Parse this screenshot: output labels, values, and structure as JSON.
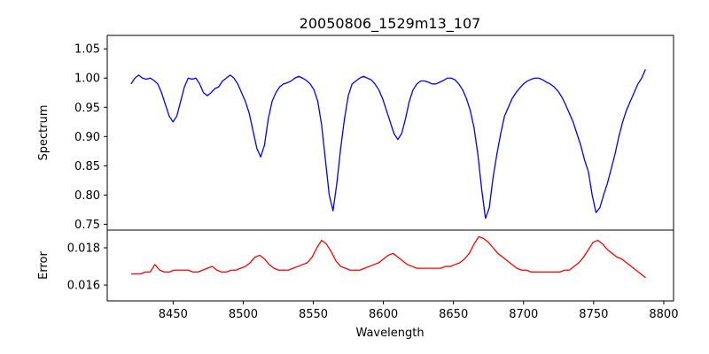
{
  "chart_data": {
    "type": "line",
    "title": "20050806_1529m13_107",
    "xlabel": "Wavelength",
    "x_ticks": [
      "8450",
      "8500",
      "8550",
      "8600",
      "8650",
      "8700",
      "8750",
      "8800"
    ],
    "xlim": [
      8403,
      8807
    ],
    "grid": false,
    "panels": [
      {
        "name": "spectrum-panel",
        "ylabel": "Spectrum",
        "ylim": [
          0.74,
          1.073
        ],
        "y_ticks": [
          "0.75",
          "0.80",
          "0.85",
          "0.90",
          "0.95",
          "1.00",
          "1.05"
        ],
        "series": [
          {
            "color": "#0000ff",
            "x_range": [
              8420,
              8787
            ],
            "y": [
              0.99,
              1.0,
              1.005,
              1.0,
              0.998,
              1.0,
              0.996,
              0.99,
              0.975,
              0.955,
              0.935,
              0.925,
              0.935,
              0.96,
              0.985,
              1.0,
              0.998,
              1.0,
              0.99,
              0.975,
              0.97,
              0.975,
              0.982,
              0.985,
              0.995,
              1.0,
              1.005,
              1.0,
              0.99,
              0.975,
              0.96,
              0.94,
              0.91,
              0.88,
              0.865,
              0.885,
              0.93,
              0.96,
              0.975,
              0.985,
              0.99,
              0.992,
              0.995,
              1.0,
              1.003,
              1.0,
              0.996,
              0.99,
              0.98,
              0.96,
              0.92,
              0.86,
              0.8,
              0.773,
              0.82,
              0.88,
              0.93,
              0.97,
              0.99,
              0.995,
              1.0,
              1.003,
              1.0,
              0.997,
              0.99,
              0.98,
              0.965,
              0.945,
              0.925,
              0.905,
              0.895,
              0.905,
              0.93,
              0.96,
              0.98,
              0.99,
              0.995,
              0.995,
              0.993,
              0.99,
              0.99,
              0.993,
              0.996,
              1.0,
              1.0,
              0.997,
              0.99,
              0.98,
              0.965,
              0.945,
              0.915,
              0.87,
              0.81,
              0.76,
              0.778,
              0.83,
              0.87,
              0.905,
              0.935,
              0.95,
              0.965,
              0.975,
              0.983,
              0.99,
              0.995,
              0.998,
              1.0,
              1.0,
              0.997,
              0.993,
              0.99,
              0.985,
              0.978,
              0.968,
              0.955,
              0.94,
              0.925,
              0.905,
              0.885,
              0.86,
              0.84,
              0.8,
              0.77,
              0.778,
              0.8,
              0.82,
              0.845,
              0.87,
              0.9,
              0.925,
              0.945,
              0.96,
              0.975,
              0.99,
              1.0,
              1.015
            ]
          }
        ]
      },
      {
        "name": "error-panel",
        "ylabel": "Error",
        "ylim": [
          0.01515,
          0.01895
        ],
        "y_ticks": [
          "0.016",
          "0.018"
        ],
        "series": [
          {
            "color": "#ff0000",
            "x_range": [
              8420,
              8787
            ],
            "y": [
              0.0166,
              0.0166,
              0.0166,
              0.0167,
              0.0167,
              0.0171,
              0.0168,
              0.0167,
              0.0167,
              0.0168,
              0.0168,
              0.0168,
              0.0168,
              0.0167,
              0.0167,
              0.0168,
              0.0169,
              0.017,
              0.0168,
              0.0167,
              0.0167,
              0.0168,
              0.0168,
              0.0169,
              0.017,
              0.0172,
              0.0175,
              0.0176,
              0.0174,
              0.0171,
              0.0169,
              0.0168,
              0.0168,
              0.0168,
              0.0169,
              0.017,
              0.0171,
              0.0172,
              0.0175,
              0.018,
              0.0184,
              0.0182,
              0.0178,
              0.0173,
              0.017,
              0.0169,
              0.0168,
              0.0168,
              0.0168,
              0.0169,
              0.017,
              0.0171,
              0.0172,
              0.0174,
              0.0176,
              0.0177,
              0.0175,
              0.0173,
              0.0171,
              0.017,
              0.0169,
              0.0169,
              0.0169,
              0.0169,
              0.0169,
              0.0169,
              0.017,
              0.017,
              0.0171,
              0.0172,
              0.0174,
              0.0177,
              0.0182,
              0.0186,
              0.0185,
              0.0183,
              0.018,
              0.0177,
              0.0175,
              0.0173,
              0.0171,
              0.0169,
              0.0168,
              0.0168,
              0.0167,
              0.0167,
              0.0167,
              0.0167,
              0.0167,
              0.0167,
              0.0167,
              0.0168,
              0.0168,
              0.017,
              0.0172,
              0.0175,
              0.0179,
              0.0183,
              0.0184,
              0.0182,
              0.0179,
              0.0177,
              0.0175,
              0.0174,
              0.0172,
              0.017,
              0.0168,
              0.0166,
              0.0164
            ]
          }
        ]
      }
    ]
  }
}
